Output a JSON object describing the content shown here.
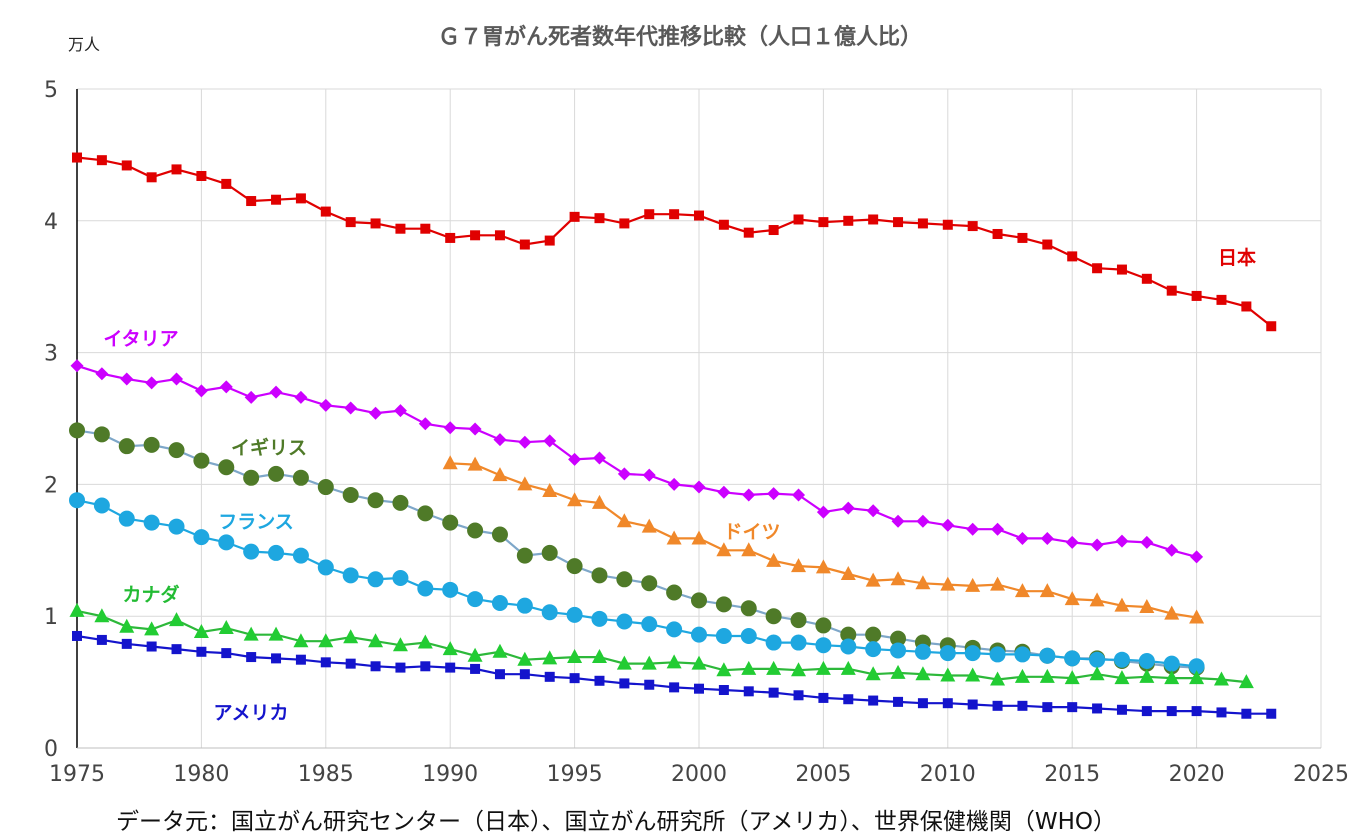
{
  "chart_data": {
    "type": "line",
    "title": "Ｇ７胃がん死者数年代推移比較（人口１億人比）",
    "ylabel": "万人",
    "xlabel": "",
    "source": "データ元：国立がん研究センター（日本）、国立がん研究所（アメリカ）、世界保健機関（WHO）",
    "xlim": [
      1975,
      2025
    ],
    "ylim": [
      0,
      5
    ],
    "x_ticks": [
      "1975",
      "1980",
      "1985",
      "1990",
      "1995",
      "2000",
      "2005",
      "2010",
      "2015",
      "2020",
      "2025"
    ],
    "y_ticks": [
      "0",
      "1",
      "2",
      "3",
      "4",
      "5"
    ],
    "grid": true,
    "legend": "inline labels",
    "series": [
      {
        "name": "日本",
        "color": "#e00000",
        "marker": "square",
        "line_color": "#e00000",
        "x": [
          1975,
          1976,
          1977,
          1978,
          1979,
          1980,
          1981,
          1982,
          1983,
          1984,
          1985,
          1986,
          1987,
          1988,
          1989,
          1990,
          1991,
          1992,
          1993,
          1994,
          1995,
          1996,
          1997,
          1998,
          1999,
          2000,
          2001,
          2002,
          2003,
          2004,
          2005,
          2006,
          2007,
          2008,
          2009,
          2010,
          2011,
          2012,
          2013,
          2014,
          2015,
          2016,
          2017,
          2018,
          2019,
          2020,
          2021,
          2022,
          2023
        ],
        "y": [
          4.48,
          4.46,
          4.42,
          4.33,
          4.39,
          4.34,
          4.28,
          4.15,
          4.16,
          4.17,
          4.07,
          3.99,
          3.98,
          3.94,
          3.94,
          3.87,
          3.89,
          3.89,
          3.82,
          3.85,
          4.03,
          4.02,
          3.98,
          4.05,
          4.05,
          4.04,
          3.97,
          3.91,
          3.93,
          4.01,
          3.99,
          4.0,
          4.01,
          3.99,
          3.98,
          3.97,
          3.96,
          3.9,
          3.87,
          3.82,
          3.73,
          3.64,
          3.63,
          3.56,
          3.47,
          3.43,
          3.4,
          3.35,
          3.2
        ]
      },
      {
        "name": "イタリア",
        "color": "#cc00ff",
        "marker": "diamond",
        "line_color": "#cc00ff",
        "x": [
          1975,
          1976,
          1977,
          1978,
          1979,
          1980,
          1981,
          1982,
          1983,
          1984,
          1985,
          1986,
          1987,
          1988,
          1989,
          1990,
          1991,
          1992,
          1993,
          1994,
          1995,
          1996,
          1997,
          1998,
          1999,
          2000,
          2001,
          2002,
          2003,
          2004,
          2005,
          2006,
          2007,
          2008,
          2009,
          2010,
          2011,
          2012,
          2013,
          2014,
          2015,
          2016,
          2017,
          2018,
          2019,
          2020
        ],
        "y": [
          2.9,
          2.84,
          2.8,
          2.77,
          2.8,
          2.71,
          2.74,
          2.66,
          2.7,
          2.66,
          2.6,
          2.58,
          2.54,
          2.56,
          2.46,
          2.43,
          2.42,
          2.34,
          2.32,
          2.33,
          2.19,
          2.2,
          2.08,
          2.07,
          2.0,
          1.98,
          1.94,
          1.92,
          1.93,
          1.92,
          1.79,
          1.82,
          1.8,
          1.72,
          1.72,
          1.69,
          1.66,
          1.66,
          1.59,
          1.59,
          1.56,
          1.54,
          1.57,
          1.56,
          1.5,
          1.45
        ]
      },
      {
        "name": "イギリス",
        "color": "#4f7a28",
        "marker": "circle",
        "line_color": "#7ea7c9",
        "x": [
          1975,
          1976,
          1977,
          1978,
          1979,
          1980,
          1981,
          1982,
          1983,
          1984,
          1985,
          1986,
          1987,
          1988,
          1989,
          1990,
          1991,
          1992,
          1993,
          1994,
          1995,
          1996,
          1997,
          1998,
          1999,
          2000,
          2001,
          2002,
          2003,
          2004,
          2005,
          2006,
          2007,
          2008,
          2009,
          2010,
          2011,
          2012,
          2013,
          2014,
          2015,
          2016,
          2017,
          2018,
          2019,
          2020
        ],
        "y": [
          2.41,
          2.38,
          2.29,
          2.3,
          2.26,
          2.18,
          2.13,
          2.05,
          2.08,
          2.05,
          1.98,
          1.92,
          1.88,
          1.86,
          1.78,
          1.71,
          1.65,
          1.62,
          1.46,
          1.48,
          1.38,
          1.31,
          1.28,
          1.25,
          1.18,
          1.12,
          1.09,
          1.06,
          1.0,
          0.97,
          0.93,
          0.86,
          0.86,
          0.83,
          0.8,
          0.78,
          0.76,
          0.74,
          0.73,
          0.7,
          0.68,
          0.68,
          0.66,
          0.64,
          0.62,
          0.61
        ]
      },
      {
        "name": "ドイツ",
        "color": "#f0882a",
        "marker": "triangle",
        "line_color": "#f0882a",
        "x": [
          1990,
          1991,
          1992,
          1993,
          1994,
          1995,
          1996,
          1997,
          1998,
          1999,
          2000,
          2001,
          2002,
          2003,
          2004,
          2005,
          2006,
          2007,
          2008,
          2009,
          2010,
          2011,
          2012,
          2013,
          2014,
          2015,
          2016,
          2017,
          2018,
          2019,
          2020
        ],
        "y": [
          2.16,
          2.15,
          2.07,
          2.0,
          1.95,
          1.88,
          1.86,
          1.72,
          1.68,
          1.59,
          1.59,
          1.5,
          1.5,
          1.42,
          1.38,
          1.37,
          1.32,
          1.27,
          1.28,
          1.25,
          1.24,
          1.23,
          1.24,
          1.19,
          1.19,
          1.13,
          1.12,
          1.08,
          1.07,
          1.02,
          0.99
        ]
      },
      {
        "name": "フランス",
        "color": "#1ea7e0",
        "marker": "circle",
        "line_color": "#1ea7e0",
        "x": [
          1975,
          1976,
          1977,
          1978,
          1979,
          1980,
          1981,
          1982,
          1983,
          1984,
          1985,
          1986,
          1987,
          1988,
          1989,
          1990,
          1991,
          1992,
          1993,
          1994,
          1995,
          1996,
          1997,
          1998,
          1999,
          2000,
          2001,
          2002,
          2003,
          2004,
          2005,
          2006,
          2007,
          2008,
          2009,
          2010,
          2011,
          2012,
          2013,
          2014,
          2015,
          2016,
          2017,
          2018,
          2019,
          2020
        ],
        "y": [
          1.88,
          1.84,
          1.74,
          1.71,
          1.68,
          1.6,
          1.56,
          1.49,
          1.48,
          1.46,
          1.37,
          1.31,
          1.28,
          1.29,
          1.21,
          1.2,
          1.13,
          1.1,
          1.08,
          1.03,
          1.01,
          0.98,
          0.96,
          0.94,
          0.9,
          0.86,
          0.85,
          0.85,
          0.8,
          0.8,
          0.78,
          0.77,
          0.75,
          0.74,
          0.73,
          0.72,
          0.72,
          0.71,
          0.71,
          0.7,
          0.68,
          0.67,
          0.67,
          0.66,
          0.64,
          0.62
        ]
      },
      {
        "name": "カナダ",
        "color": "#22cc33",
        "marker": "triangle",
        "line_color": "#2db83a",
        "x": [
          1975,
          1976,
          1977,
          1978,
          1979,
          1980,
          1981,
          1982,
          1983,
          1984,
          1985,
          1986,
          1987,
          1988,
          1989,
          1990,
          1991,
          1992,
          1993,
          1994,
          1995,
          1996,
          1997,
          1998,
          1999,
          2000,
          2001,
          2002,
          2003,
          2004,
          2005,
          2006,
          2007,
          2008,
          2009,
          2010,
          2011,
          2012,
          2013,
          2014,
          2015,
          2016,
          2017,
          2018,
          2019,
          2020,
          2021,
          2022
        ],
        "y": [
          1.04,
          1.0,
          0.92,
          0.9,
          0.97,
          0.88,
          0.91,
          0.86,
          0.86,
          0.81,
          0.81,
          0.84,
          0.81,
          0.78,
          0.8,
          0.75,
          0.7,
          0.73,
          0.67,
          0.68,
          0.69,
          0.69,
          0.64,
          0.64,
          0.65,
          0.64,
          0.59,
          0.6,
          0.6,
          0.59,
          0.6,
          0.6,
          0.56,
          0.57,
          0.56,
          0.55,
          0.55,
          0.52,
          0.54,
          0.54,
          0.53,
          0.56,
          0.53,
          0.54,
          0.53,
          0.53,
          0.52,
          0.5
        ]
      },
      {
        "name": "アメリカ",
        "color": "#1414cc",
        "marker": "square",
        "line_color": "#1414cc",
        "x": [
          1975,
          1976,
          1977,
          1978,
          1979,
          1980,
          1981,
          1982,
          1983,
          1984,
          1985,
          1986,
          1987,
          1988,
          1989,
          1990,
          1991,
          1992,
          1993,
          1994,
          1995,
          1996,
          1997,
          1998,
          1999,
          2000,
          2001,
          2002,
          2003,
          2004,
          2005,
          2006,
          2007,
          2008,
          2009,
          2010,
          2011,
          2012,
          2013,
          2014,
          2015,
          2016,
          2017,
          2018,
          2019,
          2020,
          2021,
          2022,
          2023
        ],
        "y": [
          0.85,
          0.82,
          0.79,
          0.77,
          0.75,
          0.73,
          0.72,
          0.69,
          0.68,
          0.67,
          0.65,
          0.64,
          0.62,
          0.61,
          0.62,
          0.61,
          0.6,
          0.56,
          0.56,
          0.54,
          0.53,
          0.51,
          0.49,
          0.48,
          0.46,
          0.45,
          0.44,
          0.43,
          0.42,
          0.4,
          0.38,
          0.37,
          0.36,
          0.35,
          0.34,
          0.34,
          0.33,
          0.32,
          0.32,
          0.31,
          0.31,
          0.3,
          0.29,
          0.28,
          0.28,
          0.28,
          0.27,
          0.26,
          0.26
        ]
      }
    ]
  }
}
